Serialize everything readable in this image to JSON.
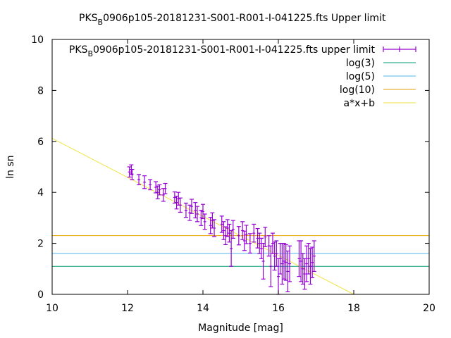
{
  "chart_data": {
    "type": "scatter",
    "title": {
      "prefix": "PKS",
      "sub": "B",
      "suffix": "0906p105-20181231-S001-R001-I-041225.fts Upper limit"
    },
    "xlabel": "Magnitude [mag]",
    "ylabel": "ln sn",
    "xlim": [
      10,
      20
    ],
    "ylim": [
      0,
      10
    ],
    "xticks": [
      "10",
      "12",
      "14",
      "16",
      "18",
      "20"
    ],
    "yticks": [
      "0",
      "2",
      "4",
      "6",
      "8",
      "10"
    ],
    "grid": false,
    "legend_position": "top-right",
    "colors": {
      "data": "#9400d3",
      "log3": "#009e73",
      "log5": "#56b4e9",
      "log10": "#e69f00",
      "fit": "#f0e442"
    },
    "series": [
      {
        "name": {
          "prefix": "PKS",
          "sub": "B",
          "suffix": "0906p105-20181231-S001-R001-I-041225.fts upper limit"
        },
        "type": "errorbar",
        "points": [
          {
            "x": 12.05,
            "y": 4.8,
            "err": 0.2
          },
          {
            "x": 12.1,
            "y": 4.9,
            "err": 0.18
          },
          {
            "x": 12.12,
            "y": 4.7,
            "err": 0.2
          },
          {
            "x": 12.3,
            "y": 4.5,
            "err": 0.2
          },
          {
            "x": 12.45,
            "y": 4.4,
            "err": 0.25
          },
          {
            "x": 12.6,
            "y": 4.3,
            "err": 0.2
          },
          {
            "x": 12.75,
            "y": 4.2,
            "err": 0.22
          },
          {
            "x": 12.8,
            "y": 4.0,
            "err": 0.25
          },
          {
            "x": 12.85,
            "y": 4.1,
            "err": 0.2
          },
          {
            "x": 12.95,
            "y": 3.9,
            "err": 0.25
          },
          {
            "x": 13.0,
            "y": 4.15,
            "err": 0.2
          },
          {
            "x": 13.25,
            "y": 3.8,
            "err": 0.22
          },
          {
            "x": 13.3,
            "y": 3.6,
            "err": 0.25
          },
          {
            "x": 13.35,
            "y": 3.75,
            "err": 0.25
          },
          {
            "x": 13.4,
            "y": 3.5,
            "err": 0.28
          },
          {
            "x": 13.55,
            "y": 3.3,
            "err": 0.28
          },
          {
            "x": 13.65,
            "y": 3.2,
            "err": 0.3
          },
          {
            "x": 13.7,
            "y": 3.45,
            "err": 0.28
          },
          {
            "x": 13.8,
            "y": 3.3,
            "err": 0.3
          },
          {
            "x": 13.85,
            "y": 3.15,
            "err": 0.3
          },
          {
            "x": 13.95,
            "y": 3.0,
            "err": 0.3
          },
          {
            "x": 14.0,
            "y": 3.25,
            "err": 0.28
          },
          {
            "x": 14.05,
            "y": 2.85,
            "err": 0.3
          },
          {
            "x": 14.2,
            "y": 2.7,
            "err": 0.32
          },
          {
            "x": 14.25,
            "y": 2.9,
            "err": 0.3
          },
          {
            "x": 14.3,
            "y": 2.6,
            "err": 0.33
          },
          {
            "x": 14.5,
            "y": 2.75,
            "err": 0.32
          },
          {
            "x": 14.55,
            "y": 2.5,
            "err": 0.35
          },
          {
            "x": 14.6,
            "y": 2.3,
            "err": 0.35
          },
          {
            "x": 14.65,
            "y": 2.6,
            "err": 0.33
          },
          {
            "x": 14.7,
            "y": 2.4,
            "err": 0.35
          },
          {
            "x": 14.75,
            "y": 1.8,
            "err": 0.7
          },
          {
            "x": 14.8,
            "y": 2.55,
            "err": 0.35
          },
          {
            "x": 14.95,
            "y": 2.3,
            "err": 0.36
          },
          {
            "x": 15.05,
            "y": 2.5,
            "err": 0.35
          },
          {
            "x": 15.1,
            "y": 2.1,
            "err": 0.38
          },
          {
            "x": 15.15,
            "y": 2.35,
            "err": 0.36
          },
          {
            "x": 15.25,
            "y": 2.0,
            "err": 0.38
          },
          {
            "x": 15.35,
            "y": 2.4,
            "err": 0.35
          },
          {
            "x": 15.45,
            "y": 2.2,
            "err": 0.38
          },
          {
            "x": 15.5,
            "y": 2.0,
            "err": 0.4
          },
          {
            "x": 15.55,
            "y": 1.8,
            "err": 0.4
          },
          {
            "x": 15.6,
            "y": 1.3,
            "err": 0.7
          },
          {
            "x": 15.65,
            "y": 2.25,
            "err": 0.38
          },
          {
            "x": 15.75,
            "y": 1.9,
            "err": 0.4
          },
          {
            "x": 15.8,
            "y": 1.1,
            "err": 0.8
          },
          {
            "x": 15.85,
            "y": 2.0,
            "err": 0.4
          },
          {
            "x": 15.9,
            "y": 1.5,
            "err": 0.55
          },
          {
            "x": 15.95,
            "y": 1.6,
            "err": 0.5
          },
          {
            "x": 16.0,
            "y": 0.7,
            "err": 0.7
          },
          {
            "x": 16.05,
            "y": 1.4,
            "err": 0.6
          },
          {
            "x": 16.1,
            "y": 1.2,
            "err": 0.8
          },
          {
            "x": 16.15,
            "y": 1.3,
            "err": 0.7
          },
          {
            "x": 16.2,
            "y": 1.25,
            "err": 0.7
          },
          {
            "x": 16.25,
            "y": 0.9,
            "err": 0.8
          },
          {
            "x": 16.3,
            "y": 1.2,
            "err": 0.7
          },
          {
            "x": 16.55,
            "y": 1.4,
            "err": 0.7
          },
          {
            "x": 16.6,
            "y": 1.3,
            "err": 0.8
          },
          {
            "x": 16.65,
            "y": 1.0,
            "err": 0.6
          },
          {
            "x": 16.7,
            "y": 0.8,
            "err": 0.6
          },
          {
            "x": 16.75,
            "y": 1.2,
            "err": 0.7
          },
          {
            "x": 16.8,
            "y": 1.4,
            "err": 0.6
          },
          {
            "x": 16.85,
            "y": 1.1,
            "err": 0.7
          },
          {
            "x": 16.9,
            "y": 1.25,
            "err": 0.6
          },
          {
            "x": 16.95,
            "y": 1.5,
            "err": 0.6
          }
        ]
      },
      {
        "name": "log(3)",
        "type": "hline",
        "y": 1.0986
      },
      {
        "name": "log(5)",
        "type": "hline",
        "y": 1.6094
      },
      {
        "name": "log(10)",
        "type": "hline",
        "y": 2.3026
      },
      {
        "name": "a*x+b",
        "type": "line",
        "x": [
          10,
          18
        ],
        "y": [
          6.12,
          0
        ]
      }
    ]
  }
}
